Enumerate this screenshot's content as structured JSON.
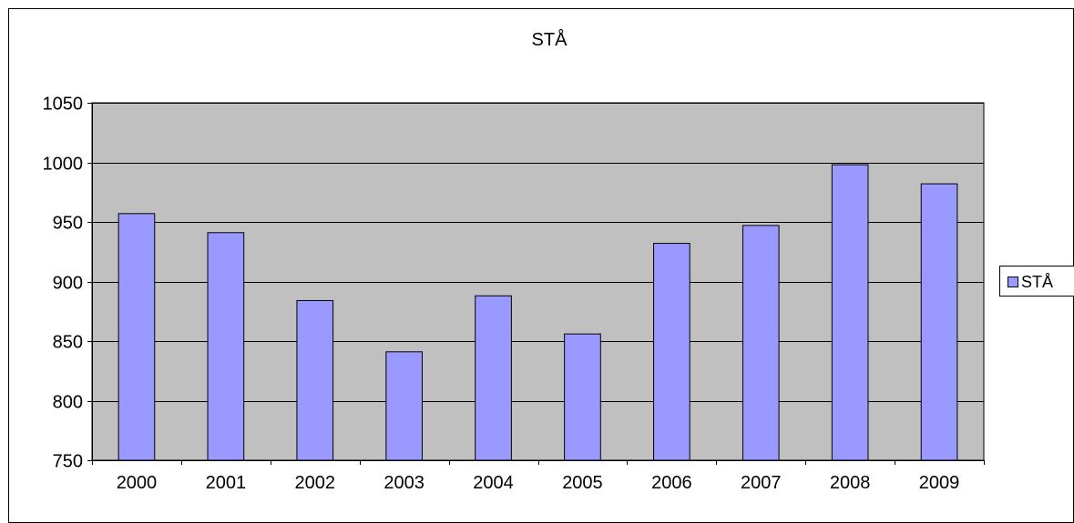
{
  "chart_data": {
    "type": "bar",
    "title": "STÅ",
    "xlabel": "",
    "ylabel": "",
    "categories": [
      "2000",
      "2001",
      "2002",
      "2003",
      "2004",
      "2005",
      "2006",
      "2007",
      "2008",
      "2009"
    ],
    "series": [
      {
        "name": "STÅ",
        "values": [
          957,
          941,
          884,
          841,
          888,
          856,
          932,
          947,
          998,
          982
        ]
      }
    ],
    "ylim": [
      750,
      1050
    ],
    "yticks": [
      "750",
      "800",
      "850",
      "900",
      "950",
      "1000",
      "1050"
    ],
    "grid": true,
    "legend_position": "right",
    "colors": {
      "bar_fill": "#9999ff",
      "plot_background": "#c0c0c0",
      "gridline": "#000000",
      "border": "#000000"
    }
  }
}
